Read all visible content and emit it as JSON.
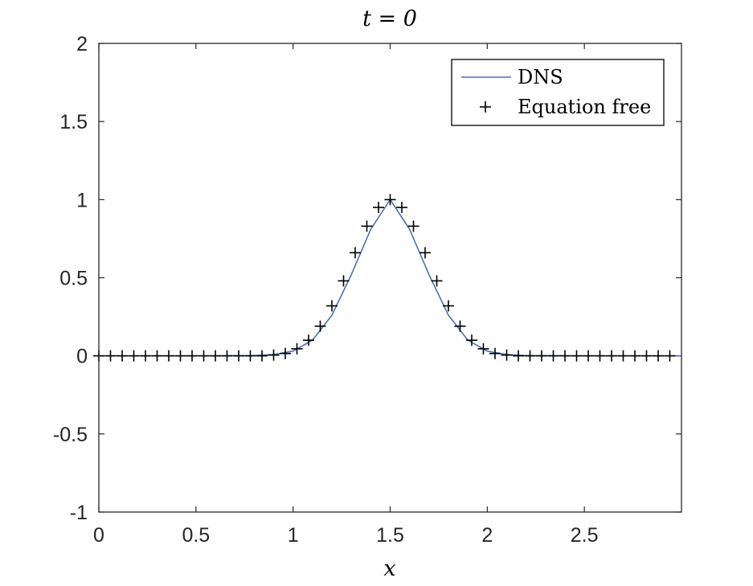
{
  "chart_data": {
    "type": "line",
    "title": "t = 0",
    "xlabel": "x",
    "ylabel": "",
    "xlim": [
      0,
      3
    ],
    "ylim": [
      -1,
      2
    ],
    "xticks": [
      0,
      0.5,
      1,
      1.5,
      2,
      2.5
    ],
    "xtick_labels": [
      "0",
      "0.5",
      "1",
      "1.5",
      "2",
      "2.5"
    ],
    "yticks": [
      -1,
      -0.5,
      0,
      0.5,
      1,
      1.5,
      2
    ],
    "ytick_labels": [
      "-1",
      "-0.5",
      "0",
      "0.5",
      "1",
      "1.5",
      "2"
    ],
    "grid": false,
    "legend_position": "top-right",
    "series": [
      {
        "name": "DNS",
        "style": "line",
        "color": "#4a72b0",
        "x": [
          0,
          0.5,
          0.8,
          0.9,
          1.0,
          1.1,
          1.2,
          1.3,
          1.4,
          1.5,
          1.6,
          1.7,
          1.8,
          1.9,
          2.0,
          2.1,
          2.2,
          2.5,
          3.0
        ],
        "y": [
          0,
          0,
          0.002,
          0.008,
          0.03,
          0.1,
          0.26,
          0.52,
          0.81,
          1.0,
          0.81,
          0.52,
          0.26,
          0.1,
          0.03,
          0.008,
          0.002,
          0,
          0
        ]
      },
      {
        "name": "Equation free",
        "style": "marker",
        "marker": "+",
        "color": "#000000",
        "x": [
          0,
          0.06,
          0.12,
          0.18,
          0.24,
          0.3,
          0.36,
          0.42,
          0.48,
          0.54,
          0.6,
          0.66,
          0.72,
          0.78,
          0.84,
          0.9,
          0.96,
          1.02,
          1.08,
          1.14,
          1.2,
          1.26,
          1.32,
          1.38,
          1.44,
          1.5,
          1.56,
          1.62,
          1.68,
          1.74,
          1.8,
          1.86,
          1.92,
          1.98,
          2.04,
          2.1,
          2.16,
          2.22,
          2.28,
          2.34,
          2.4,
          2.46,
          2.52,
          2.58,
          2.64,
          2.7,
          2.76,
          2.82,
          2.88,
          2.94
        ],
        "y": [
          0,
          0,
          0,
          0,
          0,
          0,
          0,
          0,
          0,
          0,
          0,
          0,
          0,
          0,
          0,
          0.005,
          0.015,
          0.045,
          0.1,
          0.19,
          0.32,
          0.48,
          0.66,
          0.83,
          0.95,
          1.0,
          0.95,
          0.83,
          0.66,
          0.48,
          0.32,
          0.19,
          0.1,
          0.045,
          0.015,
          0.005,
          0,
          0,
          0,
          0,
          0,
          0,
          0,
          0,
          0,
          0,
          0,
          0,
          0,
          0
        ]
      }
    ]
  }
}
